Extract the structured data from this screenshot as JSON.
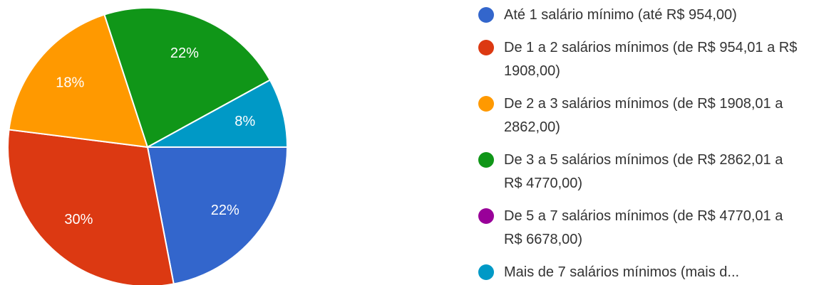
{
  "chart_data": {
    "type": "pie",
    "categories": [
      "Até 1 salário mínimo (até R$ 954,00)",
      "De 1 a 2 salários mínimos (de R$ 954,01 a R$ 1908,00)",
      "De 2 a 3 salários mínimos (de R$ 1908,01 a 2862,00)",
      "De 3 a 5 salários mínimos (de R$ 2862,01 a R$ 4770,00)",
      "De 5 a 7 salários mínimos (de R$ 4770,01 a R$ 6678,00)",
      "Mais de 7 salários mínimos (mais d..."
    ],
    "values": [
      22,
      30,
      18,
      22,
      0,
      8
    ],
    "value_labels": [
      "22%",
      "30%",
      "18%",
      "22%",
      null,
      "8%"
    ],
    "colors": [
      "#3366cc",
      "#dc3912",
      "#ff9900",
      "#109618",
      "#990099",
      "#0099c6"
    ],
    "legend": "right"
  }
}
